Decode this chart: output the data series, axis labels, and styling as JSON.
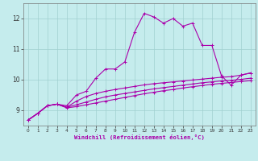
{
  "xlabel": "Windchill (Refroidissement éolien,°C)",
  "background_color": "#c5eced",
  "grid_color": "#a0d0d0",
  "line_color": "#aa00aa",
  "xlim": [
    -0.5,
    23.5
  ],
  "ylim": [
    8.5,
    12.5
  ],
  "yticks": [
    9,
    10,
    11,
    12
  ],
  "xticks": [
    0,
    1,
    2,
    3,
    4,
    5,
    6,
    7,
    8,
    9,
    10,
    11,
    12,
    13,
    14,
    15,
    16,
    17,
    18,
    19,
    20,
    21,
    22,
    23
  ],
  "line1_x": [
    0,
    1,
    2,
    3,
    4,
    5,
    6,
    7,
    8,
    9,
    10,
    11,
    12,
    13,
    14,
    15,
    16,
    17,
    18,
    19,
    20,
    21,
    22,
    23
  ],
  "line1_y": [
    8.68,
    8.9,
    9.15,
    9.2,
    9.15,
    9.5,
    9.62,
    10.05,
    10.35,
    10.35,
    10.58,
    11.55,
    12.17,
    12.05,
    11.85,
    12.0,
    11.75,
    11.85,
    11.12,
    11.12,
    10.12,
    9.82,
    10.15,
    10.22
  ],
  "line2_x": [
    0,
    1,
    2,
    3,
    4,
    5,
    6,
    7,
    8,
    9,
    10,
    11,
    12,
    13,
    14,
    15,
    16,
    17,
    18,
    19,
    20,
    21,
    22,
    23
  ],
  "line2_y": [
    8.68,
    8.9,
    9.15,
    9.2,
    9.1,
    9.3,
    9.45,
    9.55,
    9.62,
    9.68,
    9.73,
    9.78,
    9.83,
    9.87,
    9.9,
    9.93,
    9.96,
    9.99,
    10.02,
    10.05,
    10.08,
    10.1,
    10.15,
    10.22
  ],
  "line3_x": [
    0,
    1,
    2,
    3,
    4,
    5,
    6,
    7,
    8,
    9,
    10,
    11,
    12,
    13,
    14,
    15,
    16,
    17,
    18,
    19,
    20,
    21,
    22,
    23
  ],
  "line3_y": [
    8.68,
    8.9,
    9.15,
    9.2,
    9.1,
    9.18,
    9.27,
    9.36,
    9.44,
    9.5,
    9.55,
    9.6,
    9.65,
    9.7,
    9.74,
    9.78,
    9.82,
    9.86,
    9.9,
    9.93,
    9.96,
    9.98,
    10.01,
    10.05
  ],
  "line4_x": [
    0,
    1,
    2,
    3,
    4,
    5,
    6,
    7,
    8,
    9,
    10,
    11,
    12,
    13,
    14,
    15,
    16,
    17,
    18,
    19,
    20,
    21,
    22,
    23
  ],
  "line4_y": [
    8.68,
    8.9,
    9.15,
    9.2,
    9.08,
    9.12,
    9.18,
    9.24,
    9.3,
    9.36,
    9.42,
    9.48,
    9.54,
    9.59,
    9.64,
    9.68,
    9.73,
    9.77,
    9.81,
    9.85,
    9.88,
    9.91,
    9.94,
    9.97
  ]
}
